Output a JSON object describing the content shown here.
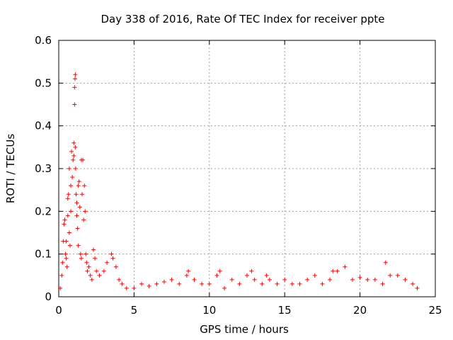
{
  "chart_data": {
    "type": "scatter",
    "title": "Day 338 of 2016, Rate Of TEC Index for receiver ppte",
    "xlabel": "GPS time / hours",
    "ylabel": "ROTI / TECUs",
    "xlim": [
      0,
      25
    ],
    "ylim": [
      0,
      0.6
    ],
    "xticks": [
      0,
      5,
      10,
      15,
      20,
      25
    ],
    "xtick_labels": [
      "0",
      "5",
      "10",
      "15",
      "20",
      "25"
    ],
    "yticks": [
      0,
      0.1,
      0.2,
      0.3,
      0.4,
      0.5,
      0.6
    ],
    "ytick_labels": [
      "0",
      "0.1",
      "0.2",
      "0.3",
      "0.4",
      "0.5",
      "0.6"
    ],
    "grid": true,
    "marker": "+",
    "color": "#ff0000",
    "series": [
      {
        "name": "ROTI",
        "points": [
          [
            0.1,
            0.02
          ],
          [
            0.2,
            0.05
          ],
          [
            0.25,
            0.08
          ],
          [
            0.3,
            0.13
          ],
          [
            0.35,
            0.17
          ],
          [
            0.4,
            0.18
          ],
          [
            0.45,
            0.1
          ],
          [
            0.5,
            0.09
          ],
          [
            0.5,
            0.13
          ],
          [
            0.55,
            0.07
          ],
          [
            0.6,
            0.19
          ],
          [
            0.6,
            0.23
          ],
          [
            0.65,
            0.24
          ],
          [
            0.7,
            0.15
          ],
          [
            0.7,
            0.3
          ],
          [
            0.75,
            0.12
          ],
          [
            0.8,
            0.2
          ],
          [
            0.8,
            0.26
          ],
          [
            0.85,
            0.34
          ],
          [
            0.9,
            0.28
          ],
          [
            0.95,
            0.32
          ],
          [
            1.0,
            0.33
          ],
          [
            1.0,
            0.36
          ],
          [
            1.05,
            0.49
          ],
          [
            1.05,
            0.45
          ],
          [
            1.08,
            0.51
          ],
          [
            1.1,
            0.52
          ],
          [
            1.1,
            0.35
          ],
          [
            1.12,
            0.3
          ],
          [
            1.15,
            0.24
          ],
          [
            1.2,
            0.22
          ],
          [
            1.2,
            0.19
          ],
          [
            1.25,
            0.16
          ],
          [
            1.3,
            0.12
          ],
          [
            1.3,
            0.26
          ],
          [
            1.35,
            0.27
          ],
          [
            1.4,
            0.21
          ],
          [
            1.45,
            0.1
          ],
          [
            1.5,
            0.32
          ],
          [
            1.5,
            0.09
          ],
          [
            1.55,
            0.24
          ],
          [
            1.6,
            0.32
          ],
          [
            1.65,
            0.18
          ],
          [
            1.7,
            0.26
          ],
          [
            1.75,
            0.2
          ],
          [
            1.8,
            0.1
          ],
          [
            1.85,
            0.08
          ],
          [
            1.9,
            0.06
          ],
          [
            2.0,
            0.07
          ],
          [
            2.1,
            0.05
          ],
          [
            2.2,
            0.04
          ],
          [
            2.3,
            0.11
          ],
          [
            2.4,
            0.09
          ],
          [
            2.5,
            0.06
          ],
          [
            2.7,
            0.05
          ],
          [
            3.0,
            0.06
          ],
          [
            3.2,
            0.08
          ],
          [
            3.5,
            0.1
          ],
          [
            3.6,
            0.09
          ],
          [
            3.8,
            0.07
          ],
          [
            4.0,
            0.04
          ],
          [
            4.2,
            0.03
          ],
          [
            4.5,
            0.02
          ],
          [
            5.0,
            0.02
          ],
          [
            5.5,
            0.03
          ],
          [
            6.0,
            0.025
          ],
          [
            6.5,
            0.03
          ],
          [
            7.0,
            0.035
          ],
          [
            7.5,
            0.04
          ],
          [
            8.0,
            0.03
          ],
          [
            8.5,
            0.05
          ],
          [
            8.6,
            0.06
          ],
          [
            9.0,
            0.04
          ],
          [
            9.5,
            0.03
          ],
          [
            10.0,
            0.03
          ],
          [
            10.5,
            0.05
          ],
          [
            10.7,
            0.06
          ],
          [
            11.0,
            0.02
          ],
          [
            11.5,
            0.04
          ],
          [
            12.0,
            0.03
          ],
          [
            12.5,
            0.05
          ],
          [
            12.8,
            0.06
          ],
          [
            13.0,
            0.04
          ],
          [
            13.5,
            0.03
          ],
          [
            13.8,
            0.05
          ],
          [
            14.0,
            0.04
          ],
          [
            14.5,
            0.03
          ],
          [
            15.0,
            0.04
          ],
          [
            15.5,
            0.03
          ],
          [
            16.0,
            0.03
          ],
          [
            16.5,
            0.04
          ],
          [
            17.0,
            0.05
          ],
          [
            17.5,
            0.03
          ],
          [
            18.0,
            0.04
          ],
          [
            18.2,
            0.06
          ],
          [
            18.5,
            0.06
          ],
          [
            19.0,
            0.07
          ],
          [
            19.5,
            0.04
          ],
          [
            20.0,
            0.045
          ],
          [
            20.5,
            0.04
          ],
          [
            21.0,
            0.04
          ],
          [
            21.5,
            0.03
          ],
          [
            21.7,
            0.08
          ],
          [
            22.0,
            0.05
          ],
          [
            22.5,
            0.05
          ],
          [
            23.0,
            0.04
          ],
          [
            23.5,
            0.03
          ],
          [
            23.8,
            0.02
          ]
        ]
      }
    ]
  }
}
